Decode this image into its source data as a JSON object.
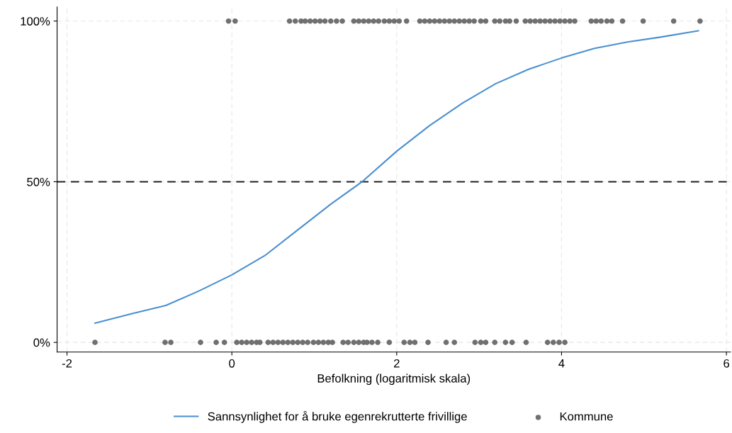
{
  "chart_data": {
    "type": "scatter",
    "xlabel": "Befolkning (logaritmisk skala)",
    "xlim": [
      -2.12,
      6.05
    ],
    "xticks": [
      {
        "value": -2,
        "label": "-2"
      },
      0,
      2,
      4,
      6
    ],
    "ylim": [
      -3,
      104.4
    ],
    "yticks": [
      {
        "value": 0,
        "label": "0%"
      },
      {
        "value": 50,
        "label": "50%"
      },
      {
        "value": 100,
        "label": "100%"
      }
    ],
    "grid": true,
    "legend": "bottom",
    "ref_lines": [
      {
        "axis": "y",
        "value": 50,
        "color": "#222222",
        "line_style": "dashed"
      }
    ],
    "series": [
      {
        "name": "Sannsynlighet for å bruke egenrekrutterte frivillige",
        "type": "line",
        "marker": "none",
        "color": "#4a90d0",
        "line_style": "solid",
        "x": [
          -1.66,
          -1.2,
          -0.8,
          -0.4,
          0,
          0.4,
          0.8,
          1.2,
          1.58,
          2.0,
          2.4,
          2.8,
          3.2,
          3.6,
          4.0,
          4.4,
          4.8,
          5.2,
          5.66
        ],
        "values": [
          6,
          9,
          11.5,
          16,
          21,
          27,
          35,
          43,
          50,
          59.5,
          67.5,
          74.5,
          80.5,
          85,
          88.5,
          91.5,
          93.5,
          95,
          97
        ]
      },
      {
        "name": "Kommune",
        "marker": "circle",
        "color": "#707070",
        "x": [
          -0.04,
          0.04,
          0.7,
          0.77,
          0.84,
          0.89,
          0.95,
          1.01,
          1.07,
          1.13,
          1.2,
          1.27,
          1.34,
          1.48,
          1.54,
          1.6,
          1.66,
          1.72,
          1.78,
          1.85,
          1.91,
          1.97,
          2.03,
          2.12,
          2.28,
          2.34,
          2.4,
          2.46,
          2.52,
          2.58,
          2.64,
          2.7,
          2.76,
          2.82,
          2.88,
          2.94,
          3.02,
          3.08,
          3.19,
          3.25,
          3.32,
          3.37,
          3.45,
          3.56,
          3.62,
          3.68,
          3.74,
          3.8,
          3.86,
          3.92,
          3.98,
          4.04,
          4.1,
          4.16,
          4.36,
          4.42,
          4.48,
          4.55,
          4.61,
          4.74,
          4.99,
          5.36,
          5.68,
          -1.66,
          -0.81,
          -0.74,
          -0.38,
          -0.19,
          -0.09,
          0.06,
          0.12,
          0.18,
          0.24,
          0.3,
          0.34,
          0.44,
          0.5,
          0.56,
          0.62,
          0.68,
          0.74,
          0.8,
          0.86,
          0.92,
          0.99,
          1.05,
          1.11,
          1.17,
          1.22,
          1.35,
          1.41,
          1.48,
          1.54,
          1.6,
          1.64,
          1.7,
          1.77,
          1.91,
          2.09,
          2.16,
          2.22,
          2.38,
          2.6,
          2.7,
          2.95,
          3.02,
          3.08,
          3.19,
          3.32,
          3.4,
          3.57,
          3.83,
          3.9,
          3.97,
          4.04
        ],
        "values": [
          100,
          100,
          100,
          100,
          100,
          100,
          100,
          100,
          100,
          100,
          100,
          100,
          100,
          100,
          100,
          100,
          100,
          100,
          100,
          100,
          100,
          100,
          100,
          100,
          100,
          100,
          100,
          100,
          100,
          100,
          100,
          100,
          100,
          100,
          100,
          100,
          100,
          100,
          100,
          100,
          100,
          100,
          100,
          100,
          100,
          100,
          100,
          100,
          100,
          100,
          100,
          100,
          100,
          100,
          100,
          100,
          100,
          100,
          100,
          100,
          100,
          100,
          100,
          0,
          0,
          0,
          0,
          0,
          0,
          0,
          0,
          0,
          0,
          0,
          0,
          0,
          0,
          0,
          0,
          0,
          0,
          0,
          0,
          0,
          0,
          0,
          0,
          0,
          0,
          0,
          0,
          0,
          0,
          0,
          0,
          0,
          0,
          0,
          0,
          0,
          0,
          0,
          0,
          0,
          0,
          0,
          0,
          0,
          0,
          0,
          0,
          0,
          0,
          0,
          0
        ]
      }
    ]
  }
}
